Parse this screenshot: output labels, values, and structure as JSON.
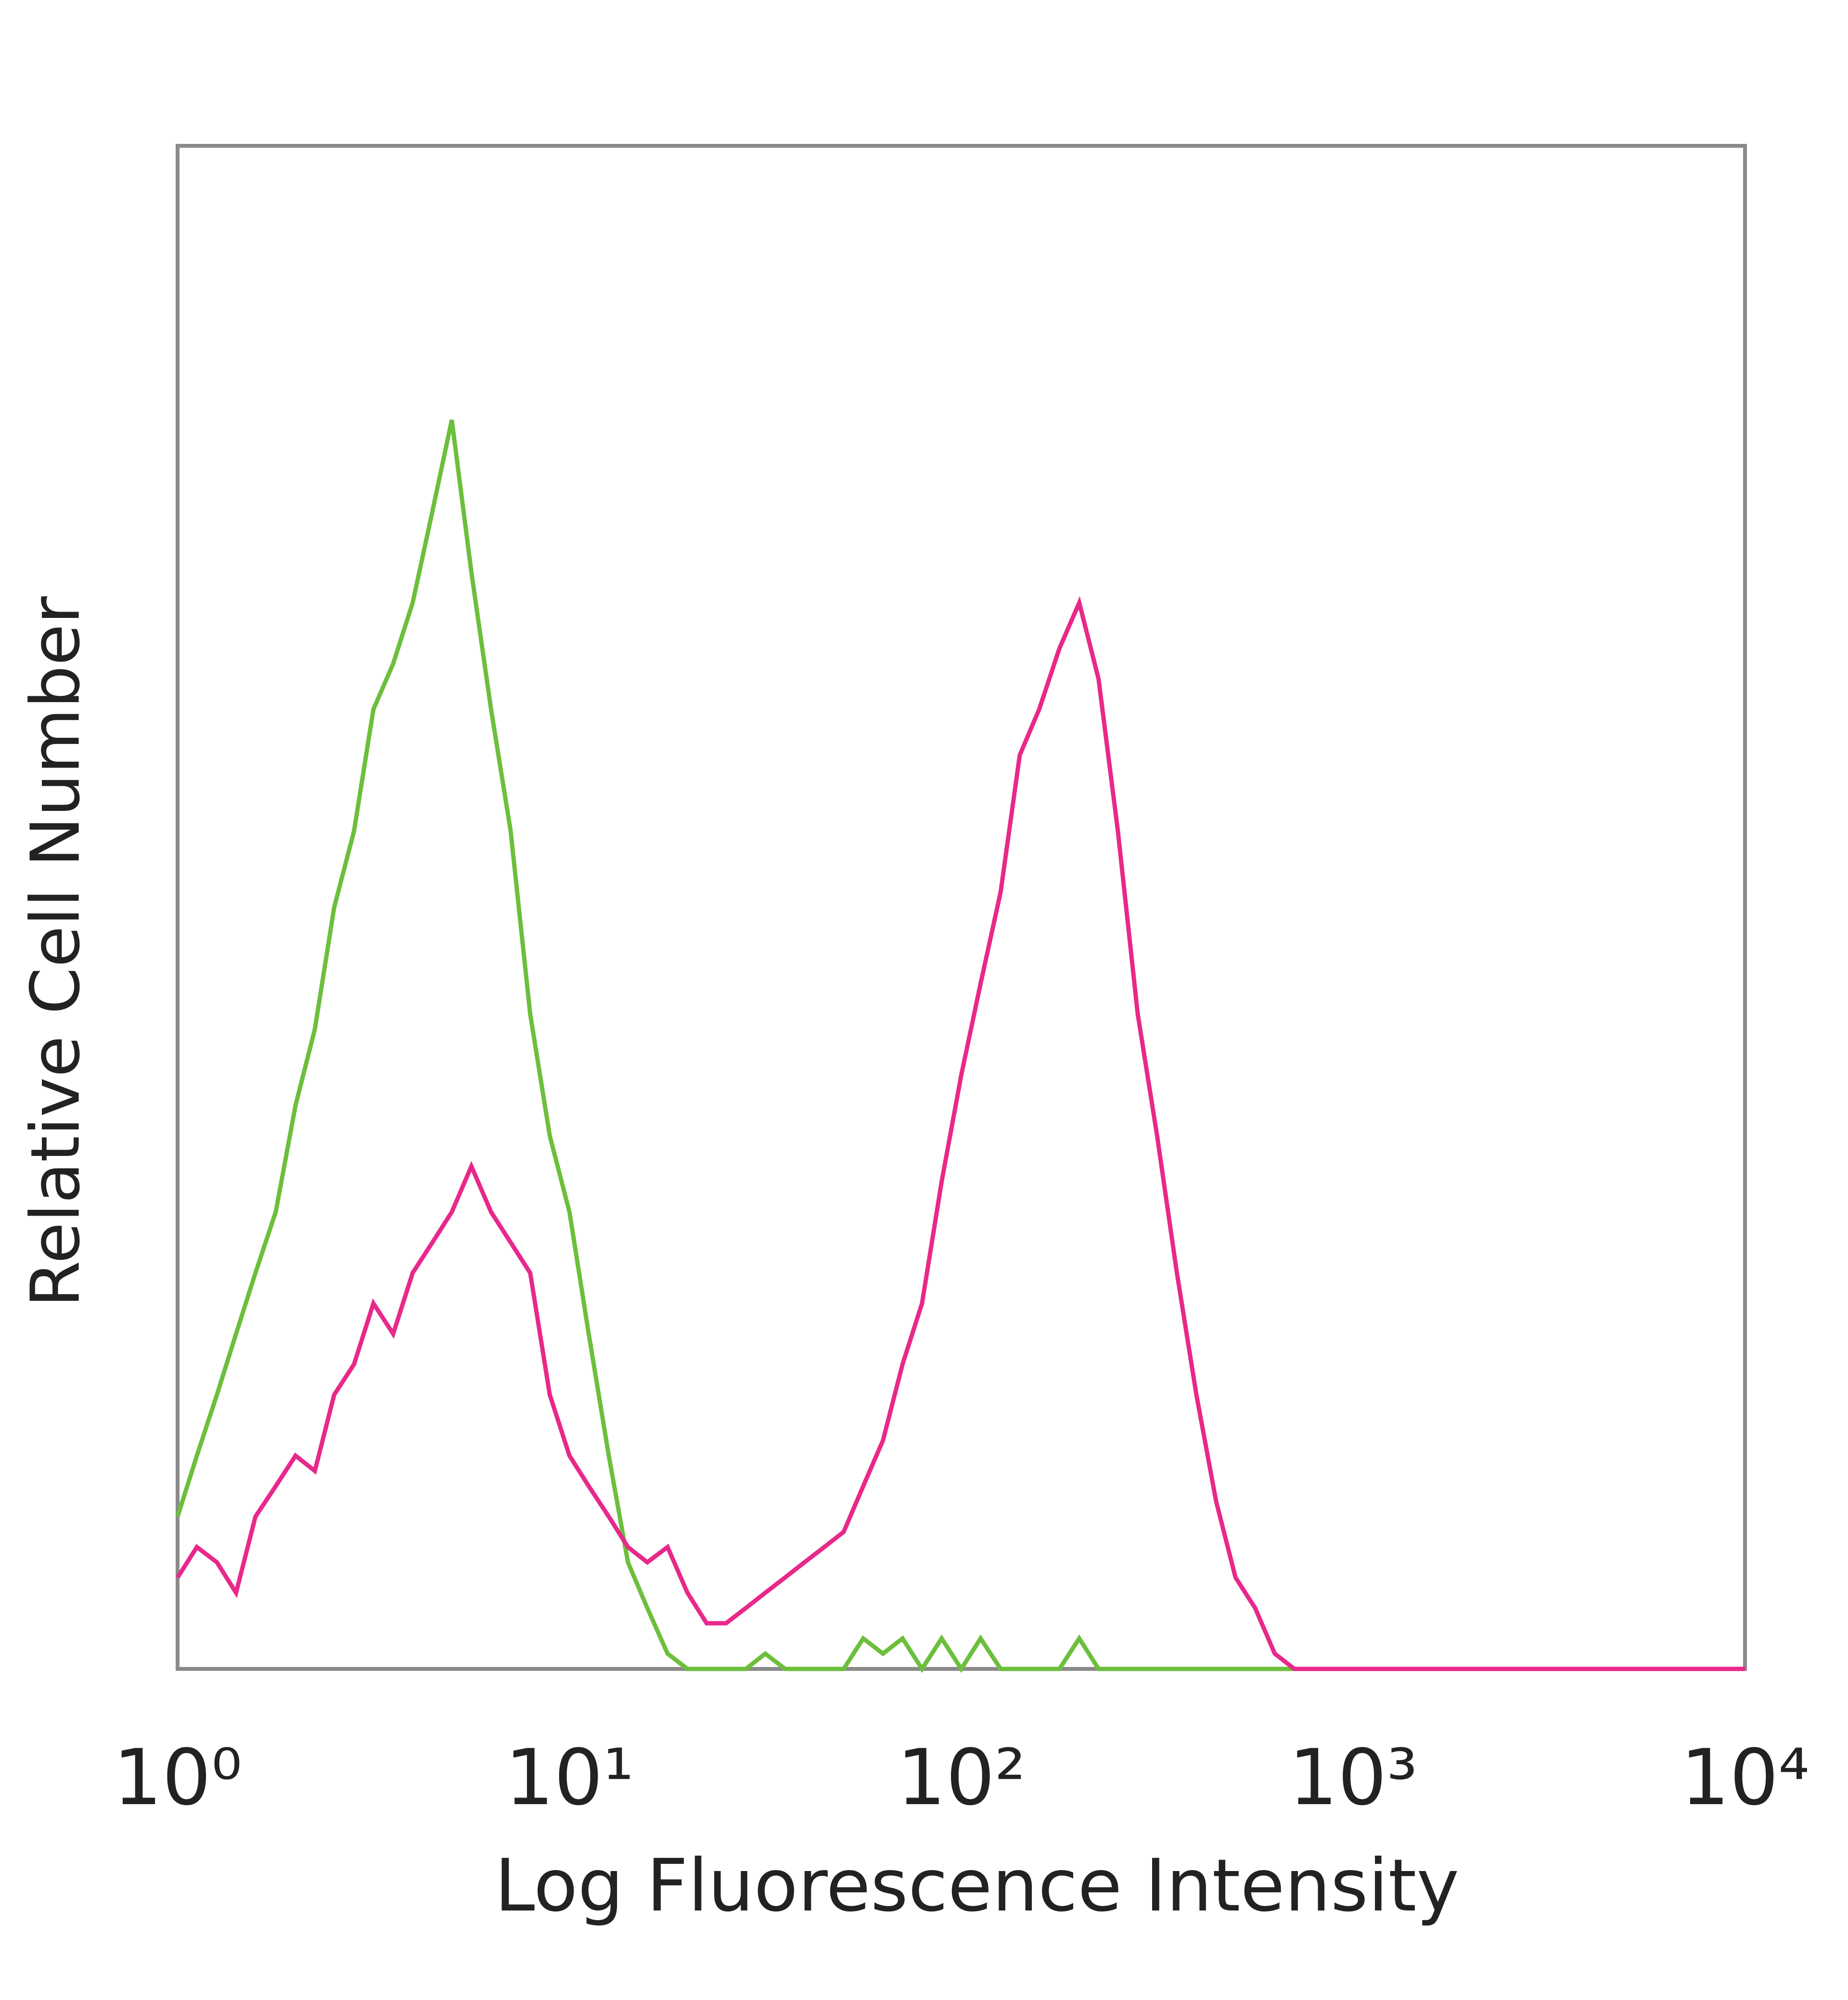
{
  "chart_data": {
    "type": "line",
    "x_scale": "log",
    "xlabel": "Log Fluorescence Intensity",
    "ylabel": "Relative Cell Number",
    "xlim": [
      1,
      10000
    ],
    "ylim": [
      0,
      100
    ],
    "xticks": [
      {
        "value": 1,
        "label": "10⁰"
      },
      {
        "value": 10,
        "label": "10¹"
      },
      {
        "value": 100,
        "label": "10²"
      },
      {
        "value": 1000,
        "label": "10³"
      },
      {
        "value": 10000,
        "label": "10⁴"
      }
    ],
    "x": [
      1,
      1.12,
      1.26,
      1.41,
      1.58,
      1.78,
      2,
      2.24,
      2.51,
      2.82,
      3.16,
      3.55,
      3.98,
      4.47,
      5.01,
      5.62,
      6.31,
      7.08,
      7.94,
      8.91,
      10,
      11.2,
      12.6,
      14.1,
      15.8,
      17.8,
      20,
      22.4,
      25.1,
      28.2,
      31.6,
      35.5,
      39.8,
      44.7,
      50.1,
      56.2,
      63.1,
      70.8,
      79.4,
      89.1,
      100,
      112,
      126,
      141,
      158,
      178,
      200,
      224,
      251,
      282,
      316,
      355,
      398,
      447,
      501,
      562,
      631,
      708,
      794,
      891,
      1000,
      10000
    ],
    "series": [
      {
        "color": "#6cbf3c",
        "values": [
          10,
          14,
          18,
          22,
          26,
          30,
          37,
          42,
          50,
          55,
          63,
          66,
          70,
          76,
          82,
          72,
          63,
          55,
          43,
          35,
          30,
          22,
          14,
          7,
          4,
          1,
          0,
          0,
          0,
          0,
          1,
          0,
          0,
          0,
          0,
          2,
          1,
          2,
          0,
          2,
          0,
          2,
          0,
          0,
          0,
          0,
          2,
          0,
          0,
          0,
          0,
          0,
          0,
          0,
          0,
          0,
          0,
          0,
          0,
          0,
          0,
          0
        ]
      },
      {
        "color": "#e8288a",
        "values": [
          6,
          8,
          7,
          5,
          10,
          12,
          14,
          13,
          18,
          20,
          24,
          22,
          26,
          28,
          30,
          33,
          30,
          28,
          26,
          18,
          14,
          12,
          10,
          8,
          7,
          8,
          5,
          3,
          3,
          4,
          5,
          6,
          7,
          8,
          9,
          12,
          15,
          20,
          24,
          32,
          39,
          45,
          51,
          60,
          63,
          67,
          70,
          65,
          55,
          43,
          35,
          26,
          18,
          11,
          6,
          4,
          1,
          0,
          0,
          0,
          0,
          0
        ]
      }
    ]
  }
}
